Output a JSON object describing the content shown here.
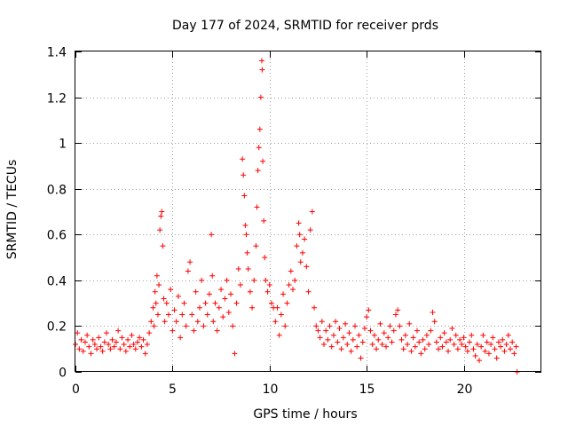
{
  "chart_data": {
    "type": "scatter",
    "title": "Day 177 of 2024, SRMTID for receiver prds",
    "xlabel": "GPS time / hours",
    "ylabel": "SRMTID / TECUs",
    "xlim": [
      0,
      24
    ],
    "ylim": [
      0,
      1.4
    ],
    "xticks": [
      0,
      5,
      10,
      15,
      20
    ],
    "xtick_labels": [
      "0",
      "5",
      "10",
      "15",
      "20"
    ],
    "yticks": [
      0,
      0.2,
      0.4,
      0.6,
      0.8,
      1.0,
      1.2,
      1.4
    ],
    "ytick_labels": [
      "0",
      "0.2",
      "0.4",
      "0.6",
      "0.8",
      "1",
      "1.2",
      "1.4"
    ],
    "grid": true,
    "marker": "+",
    "color": "#ff0000",
    "series": [
      {
        "name": "SRMTID",
        "points": [
          [
            0.0,
            0.12
          ],
          [
            0.1,
            0.17
          ],
          [
            0.2,
            0.1
          ],
          [
            0.3,
            0.14
          ],
          [
            0.4,
            0.09
          ],
          [
            0.5,
            0.13
          ],
          [
            0.6,
            0.16
          ],
          [
            0.7,
            0.11
          ],
          [
            0.8,
            0.08
          ],
          [
            0.9,
            0.14
          ],
          [
            1.0,
            0.12
          ],
          [
            1.1,
            0.1
          ],
          [
            1.2,
            0.15
          ],
          [
            1.3,
            0.11
          ],
          [
            1.4,
            0.09
          ],
          [
            1.5,
            0.13
          ],
          [
            1.6,
            0.17
          ],
          [
            1.7,
            0.12
          ],
          [
            1.8,
            0.1
          ],
          [
            1.9,
            0.14
          ],
          [
            2.0,
            0.11
          ],
          [
            2.1,
            0.13
          ],
          [
            2.2,
            0.18
          ],
          [
            2.3,
            0.1
          ],
          [
            2.4,
            0.15
          ],
          [
            2.5,
            0.12
          ],
          [
            2.6,
            0.09
          ],
          [
            2.7,
            0.14
          ],
          [
            2.8,
            0.11
          ],
          [
            2.9,
            0.16
          ],
          [
            3.0,
            0.12
          ],
          [
            3.1,
            0.1
          ],
          [
            3.2,
            0.13
          ],
          [
            3.3,
            0.15
          ],
          [
            3.4,
            0.11
          ],
          [
            3.5,
            0.14
          ],
          [
            3.6,
            0.08
          ],
          [
            3.7,
            0.12
          ],
          [
            3.8,
            0.17
          ],
          [
            3.9,
            0.22
          ],
          [
            4.0,
            0.28
          ],
          [
            4.05,
            0.2
          ],
          [
            4.1,
            0.35
          ],
          [
            4.15,
            0.3
          ],
          [
            4.2,
            0.42
          ],
          [
            4.25,
            0.25
          ],
          [
            4.3,
            0.38
          ],
          [
            4.35,
            0.62
          ],
          [
            4.4,
            0.68
          ],
          [
            4.45,
            0.7
          ],
          [
            4.5,
            0.55
          ],
          [
            4.55,
            0.32
          ],
          [
            4.6,
            0.22
          ],
          [
            4.7,
            0.3
          ],
          [
            4.8,
            0.25
          ],
          [
            4.9,
            0.36
          ],
          [
            5.0,
            0.18
          ],
          [
            5.1,
            0.27
          ],
          [
            5.2,
            0.22
          ],
          [
            5.3,
            0.33
          ],
          [
            5.4,
            0.15
          ],
          [
            5.5,
            0.25
          ],
          [
            5.6,
            0.3
          ],
          [
            5.7,
            0.2
          ],
          [
            5.8,
            0.44
          ],
          [
            5.9,
            0.48
          ],
          [
            6.0,
            0.25
          ],
          [
            6.1,
            0.18
          ],
          [
            6.2,
            0.35
          ],
          [
            6.3,
            0.22
          ],
          [
            6.4,
            0.28
          ],
          [
            6.5,
            0.4
          ],
          [
            6.6,
            0.2
          ],
          [
            6.7,
            0.3
          ],
          [
            6.8,
            0.25
          ],
          [
            6.9,
            0.34
          ],
          [
            7.0,
            0.6
          ],
          [
            7.05,
            0.42
          ],
          [
            7.1,
            0.22
          ],
          [
            7.2,
            0.3
          ],
          [
            7.3,
            0.18
          ],
          [
            7.4,
            0.28
          ],
          [
            7.5,
            0.36
          ],
          [
            7.6,
            0.24
          ],
          [
            7.7,
            0.32
          ],
          [
            7.8,
            0.4
          ],
          [
            7.9,
            0.26
          ],
          [
            8.0,
            0.34
          ],
          [
            8.1,
            0.2
          ],
          [
            8.2,
            0.08
          ],
          [
            8.3,
            0.3
          ],
          [
            8.4,
            0.45
          ],
          [
            8.5,
            0.38
          ],
          [
            8.6,
            0.93
          ],
          [
            8.65,
            0.86
          ],
          [
            8.7,
            0.77
          ],
          [
            8.75,
            0.64
          ],
          [
            8.8,
            0.6
          ],
          [
            8.85,
            0.52
          ],
          [
            8.9,
            0.45
          ],
          [
            9.0,
            0.35
          ],
          [
            9.1,
            0.28
          ],
          [
            9.2,
            0.4
          ],
          [
            9.3,
            0.55
          ],
          [
            9.35,
            0.72
          ],
          [
            9.4,
            0.88
          ],
          [
            9.45,
            0.98
          ],
          [
            9.5,
            1.06
          ],
          [
            9.55,
            1.2
          ],
          [
            9.6,
            1.36
          ],
          [
            9.62,
            1.32
          ],
          [
            9.65,
            0.92
          ],
          [
            9.7,
            0.66
          ],
          [
            9.75,
            0.5
          ],
          [
            9.8,
            0.4
          ],
          [
            9.9,
            0.35
          ],
          [
            10.0,
            0.38
          ],
          [
            10.1,
            0.3
          ],
          [
            10.2,
            0.28
          ],
          [
            10.3,
            0.22
          ],
          [
            10.4,
            0.28
          ],
          [
            10.5,
            0.16
          ],
          [
            10.6,
            0.25
          ],
          [
            10.7,
            0.34
          ],
          [
            10.8,
            0.2
          ],
          [
            10.9,
            0.3
          ],
          [
            11.0,
            0.38
          ],
          [
            11.1,
            0.44
          ],
          [
            11.2,
            0.36
          ],
          [
            11.3,
            0.4
          ],
          [
            11.4,
            0.55
          ],
          [
            11.5,
            0.65
          ],
          [
            11.55,
            0.6
          ],
          [
            11.6,
            0.48
          ],
          [
            11.7,
            0.52
          ],
          [
            11.8,
            0.58
          ],
          [
            11.9,
            0.46
          ],
          [
            12.0,
            0.35
          ],
          [
            12.1,
            0.62
          ],
          [
            12.2,
            0.7
          ],
          [
            12.3,
            0.28
          ],
          [
            12.4,
            0.2
          ],
          [
            12.5,
            0.18
          ],
          [
            12.6,
            0.15
          ],
          [
            12.7,
            0.22
          ],
          [
            12.8,
            0.12
          ],
          [
            12.9,
            0.18
          ],
          [
            13.0,
            0.14
          ],
          [
            13.1,
            0.2
          ],
          [
            13.2,
            0.11
          ],
          [
            13.3,
            0.16
          ],
          [
            13.4,
            0.22
          ],
          [
            13.5,
            0.13
          ],
          [
            13.6,
            0.19
          ],
          [
            13.7,
            0.1
          ],
          [
            13.8,
            0.15
          ],
          [
            13.9,
            0.21
          ],
          [
            14.0,
            0.12
          ],
          [
            14.1,
            0.17
          ],
          [
            14.2,
            0.09
          ],
          [
            14.3,
            0.14
          ],
          [
            14.4,
            0.2
          ],
          [
            14.5,
            0.11
          ],
          [
            14.6,
            0.16
          ],
          [
            14.7,
            0.06
          ],
          [
            14.8,
            0.13
          ],
          [
            14.9,
            0.19
          ],
          [
            15.0,
            0.24
          ],
          [
            15.1,
            0.27
          ],
          [
            15.2,
            0.18
          ],
          [
            15.3,
            0.12
          ],
          [
            15.4,
            0.16
          ],
          [
            15.5,
            0.1
          ],
          [
            15.6,
            0.14
          ],
          [
            15.7,
            0.21
          ],
          [
            15.8,
            0.12
          ],
          [
            15.9,
            0.17
          ],
          [
            16.0,
            0.11
          ],
          [
            16.1,
            0.15
          ],
          [
            16.2,
            0.2
          ],
          [
            16.3,
            0.13
          ],
          [
            16.4,
            0.18
          ],
          [
            16.5,
            0.25
          ],
          [
            16.6,
            0.27
          ],
          [
            16.7,
            0.2
          ],
          [
            16.8,
            0.14
          ],
          [
            16.9,
            0.1
          ],
          [
            17.0,
            0.16
          ],
          [
            17.1,
            0.12
          ],
          [
            17.2,
            0.21
          ],
          [
            17.3,
            0.09
          ],
          [
            17.4,
            0.15
          ],
          [
            17.5,
            0.11
          ],
          [
            17.6,
            0.18
          ],
          [
            17.7,
            0.13
          ],
          [
            17.8,
            0.08
          ],
          [
            17.9,
            0.14
          ],
          [
            18.0,
            0.1
          ],
          [
            18.1,
            0.16
          ],
          [
            18.2,
            0.12
          ],
          [
            18.3,
            0.18
          ],
          [
            18.4,
            0.26
          ],
          [
            18.5,
            0.22
          ],
          [
            18.6,
            0.13
          ],
          [
            18.7,
            0.1
          ],
          [
            18.8,
            0.15
          ],
          [
            18.9,
            0.11
          ],
          [
            19.0,
            0.17
          ],
          [
            19.1,
            0.13
          ],
          [
            19.2,
            0.09
          ],
          [
            19.3,
            0.14
          ],
          [
            19.4,
            0.19
          ],
          [
            19.5,
            0.12
          ],
          [
            19.6,
            0.16
          ],
          [
            19.7,
            0.1
          ],
          [
            19.8,
            0.14
          ],
          [
            19.9,
            0.12
          ],
          [
            20.0,
            0.15
          ],
          [
            20.1,
            0.11
          ],
          [
            20.2,
            0.09
          ],
          [
            20.3,
            0.13
          ],
          [
            20.4,
            0.16
          ],
          [
            20.5,
            0.1
          ],
          [
            20.6,
            0.07
          ],
          [
            20.7,
            0.12
          ],
          [
            20.8,
            0.05
          ],
          [
            20.9,
            0.11
          ],
          [
            21.0,
            0.16
          ],
          [
            21.1,
            0.09
          ],
          [
            21.2,
            0.13
          ],
          [
            21.3,
            0.08
          ],
          [
            21.4,
            0.12
          ],
          [
            21.5,
            0.15
          ],
          [
            21.6,
            0.1
          ],
          [
            21.7,
            0.06
          ],
          [
            21.8,
            0.13
          ],
          [
            21.9,
            0.11
          ],
          [
            22.0,
            0.14
          ],
          [
            22.1,
            0.09
          ],
          [
            22.2,
            0.12
          ],
          [
            22.3,
            0.16
          ],
          [
            22.4,
            0.1
          ],
          [
            22.5,
            0.13
          ],
          [
            22.6,
            0.08
          ],
          [
            22.7,
            0.11
          ],
          [
            22.75,
            0.0
          ]
        ]
      }
    ]
  }
}
